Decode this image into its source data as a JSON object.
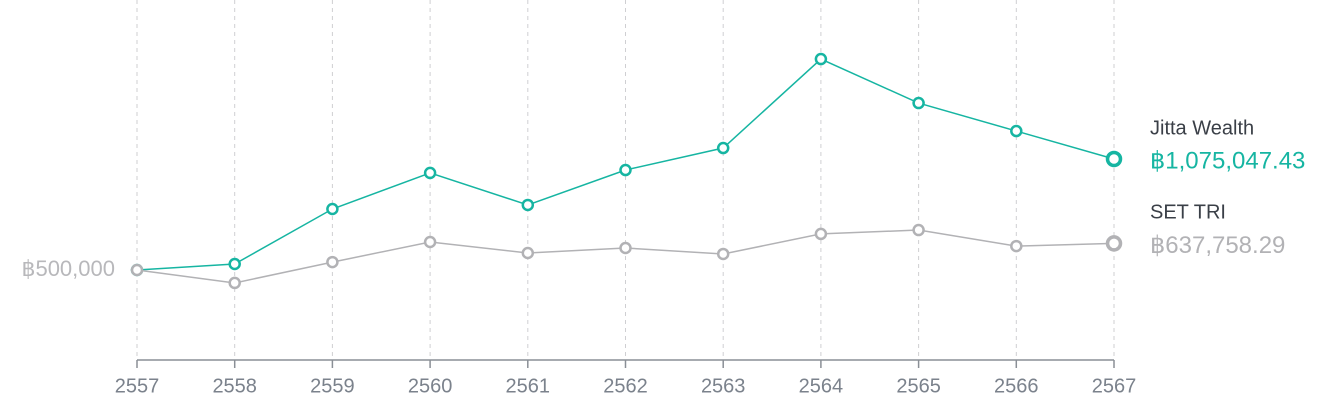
{
  "chart_data": {
    "type": "line",
    "x": [
      2557,
      2558,
      2559,
      2560,
      2561,
      2562,
      2563,
      2564,
      2565,
      2566,
      2567
    ],
    "xlim": [
      2557,
      2567
    ],
    "xticks": [
      2557,
      2558,
      2559,
      2560,
      2561,
      2562,
      2563,
      2564,
      2565,
      2566,
      2567
    ],
    "ylim": [
      33700,
      1898900
    ],
    "yticks": [
      {
        "value": 500000,
        "label": "฿500,000"
      }
    ],
    "grid": true,
    "series": [
      {
        "name": "Jitta Wealth",
        "color": "#16b5a2",
        "values": [
          500000,
          531000,
          816000,
          1003000,
          837000,
          1018000,
          1132000,
          1593000,
          1365000,
          1220000,
          1075047.43
        ],
        "value_labels": [
          null,
          null,
          null,
          null,
          null,
          null,
          null,
          null,
          null,
          null,
          "฿1,075,047.43"
        ]
      },
      {
        "name": "SET TRI",
        "color": "#b2b2b5",
        "values": [
          500000,
          433000,
          541000,
          645000,
          588000,
          614000,
          583000,
          687000,
          707000,
          624000,
          637758.29
        ],
        "value_labels": [
          null,
          null,
          null,
          null,
          null,
          null,
          null,
          null,
          null,
          null,
          "฿637,758.29"
        ]
      }
    ]
  }
}
